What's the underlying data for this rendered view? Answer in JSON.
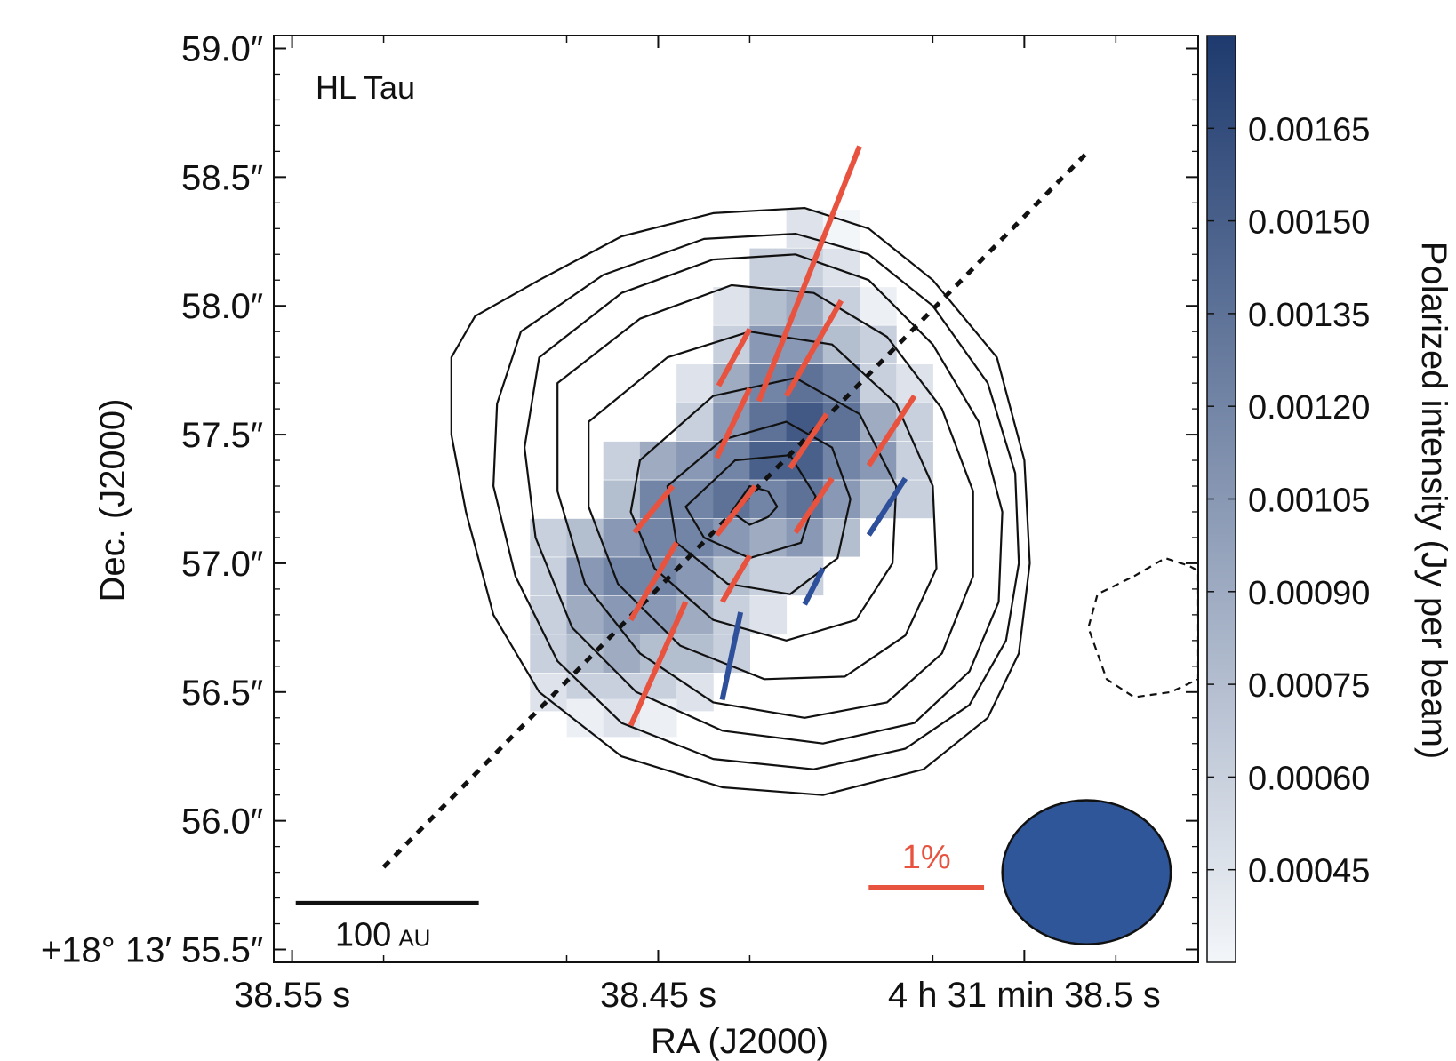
{
  "chart_data": {
    "type": "heatmap",
    "title_label": "HL Tau",
    "xlabel": "RA (J2000)",
    "ylabel": "Dec. (J2000)",
    "colorbar_label": "Polarized intensity (Jy per beam)",
    "x_ticks": [
      {
        "value": 0,
        "label": "38.55 s"
      },
      {
        "value": 2,
        "label": "38.45 s"
      },
      {
        "value": 4,
        "label": "4 h 31 min 38.5 s"
      }
    ],
    "y_ticks": [
      {
        "value": 59.0,
        "label": "59.0″"
      },
      {
        "value": 58.5,
        "label": "58.5″"
      },
      {
        "value": 58.0,
        "label": "58.0″"
      },
      {
        "value": 57.5,
        "label": "57.5″"
      },
      {
        "value": 57.0,
        "label": "57.0″"
      },
      {
        "value": 56.5,
        "label": "56.5″"
      },
      {
        "value": 56.0,
        "label": "56.0″"
      },
      {
        "value": 55.5,
        "label": "+18° 13′ 55.5″"
      }
    ],
    "xlim": [
      -0.1,
      4.95
    ],
    "ylim": [
      55.45,
      59.05
    ],
    "colorbar": {
      "min": 0.0003,
      "max": 0.0018,
      "ticks": [
        {
          "value": 0.00045,
          "label": "0.00045"
        },
        {
          "value": 0.0006,
          "label": "0.00060"
        },
        {
          "value": 0.00075,
          "label": "0.00075"
        },
        {
          "value": 0.0009,
          "label": "0.00090"
        },
        {
          "value": 0.00105,
          "label": "0.00105"
        },
        {
          "value": 0.0012,
          "label": "0.00120"
        },
        {
          "value": 0.00135,
          "label": "0.00135"
        },
        {
          "value": 0.0015,
          "label": "0.00150"
        },
        {
          "value": 0.00165,
          "label": "0.00165"
        }
      ],
      "colors": [
        "#f3f6f9",
        "#1e3a6e"
      ]
    },
    "pixel_size": [
      0.2,
      0.146
    ],
    "pixels": [
      [
        2.8,
        58.3,
        0.00045
      ],
      [
        3.0,
        58.3,
        0.0003
      ],
      [
        2.6,
        58.15,
        0.0006
      ],
      [
        2.8,
        58.15,
        0.0006
      ],
      [
        3.0,
        58.15,
        0.00045
      ],
      [
        2.4,
        58.0,
        0.00045
      ],
      [
        2.6,
        58.0,
        0.00075
      ],
      [
        2.8,
        58.0,
        0.0009
      ],
      [
        3.0,
        58.0,
        0.0006
      ],
      [
        3.2,
        58.0,
        0.00035
      ],
      [
        2.4,
        57.85,
        0.0006
      ],
      [
        2.6,
        57.85,
        0.00105
      ],
      [
        2.8,
        57.85,
        0.00105
      ],
      [
        3.0,
        57.85,
        0.00075
      ],
      [
        3.2,
        57.85,
        0.0006
      ],
      [
        2.2,
        57.7,
        0.00045
      ],
      [
        2.4,
        57.7,
        0.0009
      ],
      [
        2.6,
        57.7,
        0.0012
      ],
      [
        2.8,
        57.7,
        0.00135
      ],
      [
        3.0,
        57.7,
        0.0012
      ],
      [
        3.2,
        57.7,
        0.0006
      ],
      [
        3.4,
        57.7,
        0.00045
      ],
      [
        2.2,
        57.55,
        0.0006
      ],
      [
        2.4,
        57.55,
        0.00105
      ],
      [
        2.6,
        57.55,
        0.00135
      ],
      [
        2.8,
        57.55,
        0.00155
      ],
      [
        3.0,
        57.55,
        0.00135
      ],
      [
        3.2,
        57.55,
        0.0009
      ],
      [
        3.4,
        57.55,
        0.0006
      ],
      [
        1.8,
        57.4,
        0.0006
      ],
      [
        2.0,
        57.4,
        0.0009
      ],
      [
        2.2,
        57.4,
        0.00105
      ],
      [
        2.4,
        57.4,
        0.0012
      ],
      [
        2.6,
        57.4,
        0.0015
      ],
      [
        2.8,
        57.4,
        0.0015
      ],
      [
        3.0,
        57.4,
        0.0012
      ],
      [
        3.2,
        57.4,
        0.00105
      ],
      [
        3.4,
        57.4,
        0.0006
      ],
      [
        1.8,
        57.25,
        0.00075
      ],
      [
        2.0,
        57.25,
        0.0012
      ],
      [
        2.2,
        57.25,
        0.0012
      ],
      [
        2.4,
        57.25,
        0.00135
      ],
      [
        2.6,
        57.25,
        0.0012
      ],
      [
        2.8,
        57.25,
        0.00135
      ],
      [
        3.0,
        57.25,
        0.00105
      ],
      [
        3.2,
        57.25,
        0.00075
      ],
      [
        3.4,
        57.25,
        0.0006
      ],
      [
        1.4,
        57.1,
        0.0006
      ],
      [
        1.6,
        57.1,
        0.00075
      ],
      [
        1.8,
        57.1,
        0.00105
      ],
      [
        2.0,
        57.1,
        0.0012
      ],
      [
        2.2,
        57.1,
        0.0012
      ],
      [
        2.4,
        57.1,
        0.00105
      ],
      [
        2.6,
        57.1,
        0.0009
      ],
      [
        2.8,
        57.1,
        0.00105
      ],
      [
        3.0,
        57.1,
        0.00075
      ],
      [
        1.4,
        56.95,
        0.0006
      ],
      [
        1.6,
        56.95,
        0.00105
      ],
      [
        1.8,
        56.95,
        0.0012
      ],
      [
        2.0,
        56.95,
        0.0012
      ],
      [
        2.2,
        56.95,
        0.00105
      ],
      [
        2.4,
        56.95,
        0.00075
      ],
      [
        2.6,
        56.95,
        0.0006
      ],
      [
        2.8,
        56.95,
        0.0006
      ],
      [
        1.4,
        56.8,
        0.0006
      ],
      [
        1.6,
        56.8,
        0.0009
      ],
      [
        1.8,
        56.8,
        0.00105
      ],
      [
        2.0,
        56.8,
        0.00105
      ],
      [
        2.2,
        56.8,
        0.0009
      ],
      [
        2.4,
        56.8,
        0.0006
      ],
      [
        2.6,
        56.8,
        0.00045
      ],
      [
        1.4,
        56.65,
        0.0006
      ],
      [
        1.6,
        56.65,
        0.00075
      ],
      [
        1.8,
        56.65,
        0.0009
      ],
      [
        2.0,
        56.65,
        0.00075
      ],
      [
        2.2,
        56.65,
        0.00075
      ],
      [
        2.4,
        56.65,
        0.0006
      ],
      [
        1.4,
        56.5,
        0.00045
      ],
      [
        1.6,
        56.5,
        0.0006
      ],
      [
        1.8,
        56.5,
        0.0006
      ],
      [
        2.0,
        56.5,
        0.0006
      ],
      [
        2.2,
        56.5,
        0.00045
      ],
      [
        1.6,
        56.4,
        0.00035
      ],
      [
        1.8,
        56.4,
        0.00045
      ],
      [
        2.0,
        56.4,
        0.00035
      ]
    ],
    "contours": [
      {
        "style": "solid",
        "points": [
          [
            1.0,
            57.96
          ],
          [
            1.35,
            58.1
          ],
          [
            1.8,
            58.27
          ],
          [
            2.3,
            58.36
          ],
          [
            2.8,
            58.38
          ],
          [
            3.15,
            58.3
          ],
          [
            3.5,
            58.1
          ],
          [
            3.85,
            57.8
          ],
          [
            4.0,
            57.4
          ],
          [
            4.03,
            57.0
          ],
          [
            3.97,
            56.65
          ],
          [
            3.8,
            56.4
          ],
          [
            3.45,
            56.2
          ],
          [
            2.9,
            56.1
          ],
          [
            2.35,
            56.13
          ],
          [
            1.8,
            56.25
          ],
          [
            1.35,
            56.5
          ],
          [
            1.1,
            56.8
          ],
          [
            0.95,
            57.2
          ],
          [
            0.87,
            57.5
          ],
          [
            0.87,
            57.8
          ]
        ]
      },
      {
        "style": "solid",
        "points": [
          [
            1.25,
            57.9
          ],
          [
            1.7,
            58.12
          ],
          [
            2.25,
            58.26
          ],
          [
            2.75,
            58.28
          ],
          [
            3.15,
            58.2
          ],
          [
            3.5,
            58.0
          ],
          [
            3.8,
            57.7
          ],
          [
            3.95,
            57.35
          ],
          [
            3.97,
            57.0
          ],
          [
            3.9,
            56.7
          ],
          [
            3.7,
            56.45
          ],
          [
            3.35,
            56.28
          ],
          [
            2.85,
            56.2
          ],
          [
            2.3,
            56.24
          ],
          [
            1.8,
            56.38
          ],
          [
            1.45,
            56.62
          ],
          [
            1.22,
            56.95
          ],
          [
            1.1,
            57.3
          ],
          [
            1.12,
            57.62
          ]
        ]
      },
      {
        "style": "solid",
        "points": [
          [
            1.35,
            57.8
          ],
          [
            1.8,
            58.05
          ],
          [
            2.3,
            58.18
          ],
          [
            2.75,
            58.2
          ],
          [
            3.15,
            58.1
          ],
          [
            3.5,
            57.85
          ],
          [
            3.75,
            57.55
          ],
          [
            3.88,
            57.2
          ],
          [
            3.86,
            56.85
          ],
          [
            3.7,
            56.58
          ],
          [
            3.4,
            56.38
          ],
          [
            2.9,
            56.3
          ],
          [
            2.35,
            56.35
          ],
          [
            1.88,
            56.5
          ],
          [
            1.53,
            56.75
          ],
          [
            1.33,
            57.1
          ],
          [
            1.27,
            57.45
          ]
        ]
      },
      {
        "style": "solid",
        "points": [
          [
            1.45,
            57.7
          ],
          [
            1.9,
            57.95
          ],
          [
            2.4,
            58.08
          ],
          [
            2.85,
            58.05
          ],
          [
            3.25,
            57.88
          ],
          [
            3.55,
            57.6
          ],
          [
            3.72,
            57.28
          ],
          [
            3.72,
            56.95
          ],
          [
            3.55,
            56.65
          ],
          [
            3.25,
            56.46
          ],
          [
            2.8,
            56.4
          ],
          [
            2.3,
            56.46
          ],
          [
            1.9,
            56.65
          ],
          [
            1.6,
            56.92
          ],
          [
            1.45,
            57.28
          ]
        ]
      },
      {
        "style": "solid",
        "points": [
          [
            1.62,
            57.55
          ],
          [
            2.05,
            57.8
          ],
          [
            2.5,
            57.9
          ],
          [
            2.95,
            57.85
          ],
          [
            3.3,
            57.62
          ],
          [
            3.5,
            57.3
          ],
          [
            3.52,
            56.98
          ],
          [
            3.35,
            56.72
          ],
          [
            3.02,
            56.56
          ],
          [
            2.58,
            56.55
          ],
          [
            2.12,
            56.68
          ],
          [
            1.78,
            56.92
          ],
          [
            1.62,
            57.22
          ]
        ]
      },
      {
        "style": "solid",
        "points": [
          [
            1.9,
            57.4
          ],
          [
            2.3,
            57.65
          ],
          [
            2.75,
            57.72
          ],
          [
            3.1,
            57.58
          ],
          [
            3.3,
            57.3
          ],
          [
            3.28,
            57.0
          ],
          [
            3.08,
            56.78
          ],
          [
            2.7,
            56.7
          ],
          [
            2.3,
            56.78
          ],
          [
            1.98,
            56.98
          ],
          [
            1.85,
            57.2
          ]
        ]
      },
      {
        "style": "solid",
        "points": [
          [
            2.05,
            57.3
          ],
          [
            2.35,
            57.48
          ],
          [
            2.7,
            57.55
          ],
          [
            2.95,
            57.45
          ],
          [
            3.05,
            57.25
          ],
          [
            2.98,
            57.02
          ],
          [
            2.72,
            56.88
          ],
          [
            2.38,
            56.92
          ],
          [
            2.1,
            57.08
          ]
        ]
      },
      {
        "style": "solid",
        "points": [
          [
            2.15,
            57.22
          ],
          [
            2.42,
            57.4
          ],
          [
            2.72,
            57.42
          ],
          [
            2.86,
            57.26
          ],
          [
            2.78,
            57.08
          ],
          [
            2.5,
            57.02
          ],
          [
            2.25,
            57.1
          ]
        ]
      },
      {
        "style": "solid",
        "points": [
          [
            2.4,
            57.2
          ],
          [
            2.5,
            57.3
          ],
          [
            2.6,
            57.28
          ],
          [
            2.65,
            57.22
          ],
          [
            2.6,
            57.18
          ],
          [
            2.5,
            57.15
          ]
        ]
      },
      {
        "style": "dashed",
        "points": [
          [
            4.6,
            56.95
          ],
          [
            4.77,
            57.02
          ],
          [
            4.9,
            56.99
          ],
          [
            4.95,
            56.97
          ],
          [
            4.95,
            56.55
          ],
          [
            4.8,
            56.5
          ],
          [
            4.6,
            56.48
          ],
          [
            4.45,
            56.55
          ],
          [
            4.35,
            56.75
          ],
          [
            4.4,
            56.88
          ]
        ]
      }
    ],
    "major_axis": [
      [
        0.5,
        55.82
      ],
      [
        4.35,
        58.6
      ]
    ],
    "vectors_red": [
      [
        [
          1.85,
          56.37
        ],
        [
          2.15,
          56.85
        ]
      ],
      [
        [
          1.85,
          56.78
        ],
        [
          2.1,
          57.08
        ]
      ],
      [
        [
          1.87,
          57.12
        ],
        [
          2.08,
          57.3
        ]
      ],
      [
        [
          2.35,
          56.85
        ],
        [
          2.5,
          57.03
        ]
      ],
      [
        [
          2.32,
          57.11
        ],
        [
          2.53,
          57.3
        ]
      ],
      [
        [
          2.32,
          57.41
        ],
        [
          2.5,
          57.68
        ]
      ],
      [
        [
          2.33,
          57.69
        ],
        [
          2.5,
          57.91
        ]
      ],
      [
        [
          2.55,
          57.63
        ],
        [
          3.1,
          58.62
        ]
      ],
      [
        [
          2.7,
          57.65
        ],
        [
          3.0,
          58.02
        ]
      ],
      [
        [
          2.72,
          57.37
        ],
        [
          2.92,
          57.58
        ]
      ],
      [
        [
          2.75,
          57.12
        ],
        [
          2.95,
          57.33
        ]
      ],
      [
        [
          3.15,
          57.38
        ],
        [
          3.4,
          57.65
        ]
      ]
    ],
    "vectors_blue": [
      [
        [
          2.35,
          56.47
        ],
        [
          2.45,
          56.81
        ]
      ],
      [
        [
          2.8,
          56.84
        ],
        [
          2.9,
          56.98
        ]
      ],
      [
        [
          3.15,
          57.11
        ],
        [
          3.35,
          57.33
        ]
      ]
    ],
    "scale_bar_label": "100",
    "scale_bar_unit": "AU",
    "scale_bar": [
      [
        0.02,
        55.68
      ],
      [
        1.02,
        55.68
      ]
    ],
    "percent_label": "1%",
    "percent_bar": [
      [
        3.15,
        55.74
      ],
      [
        3.78,
        55.74
      ]
    ],
    "beam": {
      "x": 4.34,
      "y": 55.8,
      "width": 0.92,
      "height": 0.56
    },
    "colors": {
      "vector_red": "#e8533f",
      "vector_blue": "#2e4f9a",
      "beam_fill": "#30569a",
      "percent_label": "#e8533f"
    }
  }
}
